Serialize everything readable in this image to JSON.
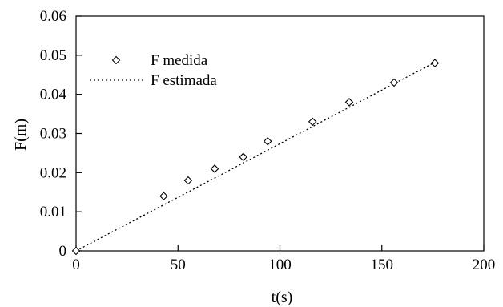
{
  "chart_data": {
    "type": "scatter",
    "title": "",
    "xlabel": "t(s)",
    "ylabel": "F(m)",
    "xlim": [
      0,
      200
    ],
    "ylim": [
      0,
      0.06
    ],
    "xticks": [
      0,
      50,
      100,
      150,
      200
    ],
    "yticks": [
      0,
      0.01,
      0.02,
      0.03,
      0.04,
      0.05,
      0.06
    ],
    "xtick_labels": [
      "0",
      "50",
      "100",
      "150",
      "200"
    ],
    "ytick_labels": [
      "0",
      "0.01",
      "0.02",
      "0.03",
      "0.04",
      "0.05",
      "0.06"
    ],
    "grid": false,
    "legend_position": "top-left",
    "series": [
      {
        "name": "F medida",
        "style": "markers",
        "marker": "diamond",
        "x": [
          0,
          43,
          55,
          68,
          82,
          94,
          116,
          134,
          156,
          176
        ],
        "y": [
          0,
          0.014,
          0.018,
          0.021,
          0.024,
          0.028,
          0.033,
          0.038,
          0.043,
          0.048
        ]
      },
      {
        "name": "F estimada",
        "style": "dotted-line",
        "x": [
          0,
          176
        ],
        "y": [
          0,
          0.0482
        ]
      }
    ]
  }
}
